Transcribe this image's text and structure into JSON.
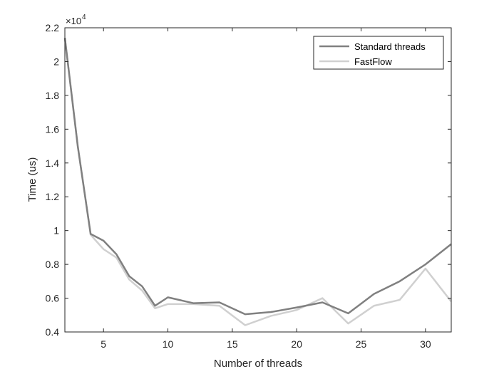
{
  "chart_data": {
    "type": "line",
    "xlabel": "Number of threads",
    "ylabel": "Time (us)",
    "xlim": [
      2,
      32
    ],
    "ylim": [
      0.4,
      2.2
    ],
    "y_multiplier": {
      "base": "×10",
      "exponent": "4"
    },
    "xticks": [
      5,
      10,
      15,
      20,
      25,
      30
    ],
    "yticks": [
      0.4,
      0.6,
      0.8,
      1,
      1.2,
      1.4,
      1.6,
      1.8,
      2,
      2.2
    ],
    "ytick_labels": [
      "0.4",
      "0.6",
      "0.8",
      "1",
      "1.2",
      "1.4",
      "1.6",
      "1.8",
      "2",
      "2.2"
    ],
    "grid": false,
    "legend_position": "top-right",
    "series": [
      {
        "name": "Standard threads",
        "color": "#808080",
        "x": [
          2,
          3,
          4,
          5,
          6,
          7,
          8,
          9,
          10,
          12,
          14,
          16,
          18,
          20,
          22,
          24,
          26,
          28,
          30,
          32
        ],
        "y": [
          2.14,
          1.5,
          0.98,
          0.94,
          0.86,
          0.73,
          0.67,
          0.555,
          0.605,
          0.57,
          0.575,
          0.505,
          0.518,
          0.545,
          0.575,
          0.51,
          0.625,
          0.7,
          0.8,
          0.92
        ]
      },
      {
        "name": "FastFlow",
        "color": "#d0d0d0",
        "x": [
          2,
          3,
          4,
          5,
          6,
          7,
          8,
          9,
          10,
          12,
          14,
          16,
          18,
          20,
          22,
          24,
          26,
          28,
          30,
          32
        ],
        "y": [
          2.14,
          1.5,
          0.975,
          0.89,
          0.84,
          0.71,
          0.645,
          0.54,
          0.565,
          0.565,
          0.555,
          0.44,
          0.495,
          0.53,
          0.6,
          0.45,
          0.555,
          0.59,
          0.775,
          0.58
        ]
      }
    ]
  }
}
